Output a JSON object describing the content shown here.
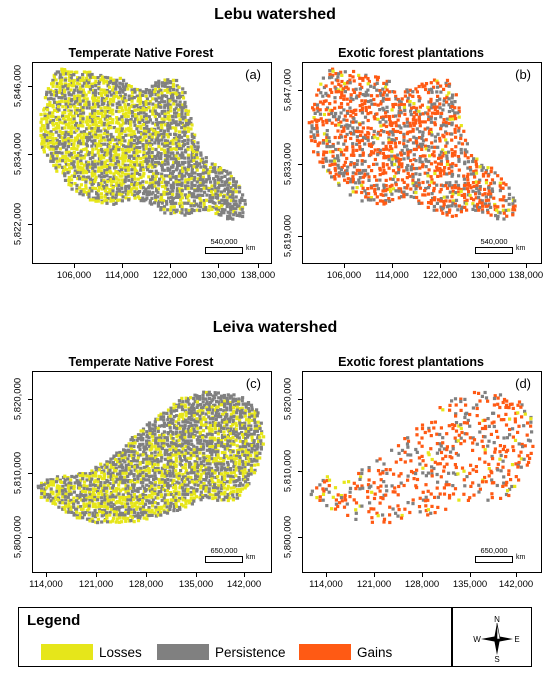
{
  "sections": [
    {
      "title": "Lebu watershed",
      "panels": [
        {
          "title": "Temperate Native Forest",
          "letter": "(a)",
          "x_ticks": [
            "106,000",
            "114,000",
            "122,000",
            "130,000",
            "138,000"
          ],
          "y_ticks": [
            "5,846,000",
            "5,834,000",
            "5,822,000"
          ],
          "scale_value": "540,000",
          "scale_unit": "km"
        },
        {
          "title": "Exotic forest plantations",
          "letter": "(b)",
          "x_ticks": [
            "106,000",
            "114,000",
            "122,000",
            "130,000",
            "138,000"
          ],
          "y_ticks": [
            "5,847,000",
            "5,833,000",
            "5,819,000"
          ],
          "scale_value": "540,000",
          "scale_unit": "km"
        }
      ]
    },
    {
      "title": "Leiva watershed",
      "panels": [
        {
          "title": "Temperate Native Forest",
          "letter": "(c)",
          "x_ticks": [
            "114,000",
            "121,000",
            "128,000",
            "135,000",
            "142,000"
          ],
          "y_ticks": [
            "5,820,000",
            "5,810,000",
            "5,800,000"
          ],
          "scale_value": "650,000",
          "scale_unit": "km"
        },
        {
          "title": "Exotic forest plantations",
          "letter": "(d)",
          "x_ticks": [
            "114,000",
            "121,000",
            "128,000",
            "135,000",
            "142,000"
          ],
          "y_ticks": [
            "5,820,000",
            "5,810,000",
            "5,800,000"
          ],
          "scale_value": "650,000",
          "scale_unit": "km"
        }
      ]
    }
  ],
  "legend": {
    "title": "Legend",
    "items": [
      {
        "label": "Losses",
        "color": "#e6e61a"
      },
      {
        "label": "Persistence",
        "color": "#808080"
      },
      {
        "label": "Gains",
        "color": "#ff5a14"
      }
    ],
    "compass": {
      "n": "N",
      "s": "S",
      "e": "E",
      "w": "W"
    }
  }
}
